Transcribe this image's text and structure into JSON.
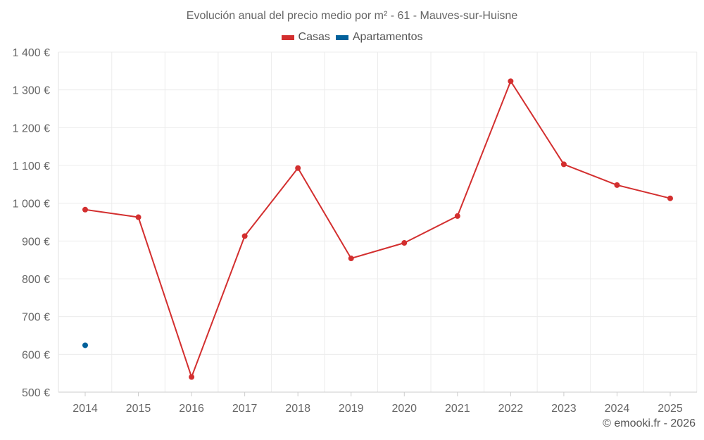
{
  "chart_data": {
    "type": "line",
    "title": "Evolución anual del precio medio por m² - 61 - Mauves-sur-Huisne",
    "categories": [
      "2014",
      "2015",
      "2016",
      "2017",
      "2018",
      "2019",
      "2020",
      "2021",
      "2022",
      "2023",
      "2024",
      "2025"
    ],
    "series": [
      {
        "name": "Casas",
        "color": "#d32f2f",
        "values": [
          983,
          963,
          540,
          913,
          1093,
          854,
          895,
          966,
          1323,
          1103,
          1048,
          1013
        ]
      },
      {
        "name": "Apartamentos",
        "color": "#01619b",
        "values": [
          624,
          null,
          null,
          null,
          null,
          null,
          null,
          null,
          null,
          null,
          null,
          null
        ]
      }
    ],
    "y_ticks": [
      500,
      600,
      700,
      800,
      900,
      1000,
      1100,
      1200,
      1300,
      1400
    ],
    "y_tick_labels": [
      "500 €",
      "600 €",
      "700 €",
      "800 €",
      "900 €",
      "1 000 €",
      "1 100 €",
      "1 200 €",
      "1 300 €",
      "1 400 €"
    ],
    "ylim": [
      500,
      1400
    ],
    "xlabel": "",
    "ylabel": "",
    "legend_position": "top-center",
    "grid": true
  },
  "credit": "© emooki.fr - 2026"
}
